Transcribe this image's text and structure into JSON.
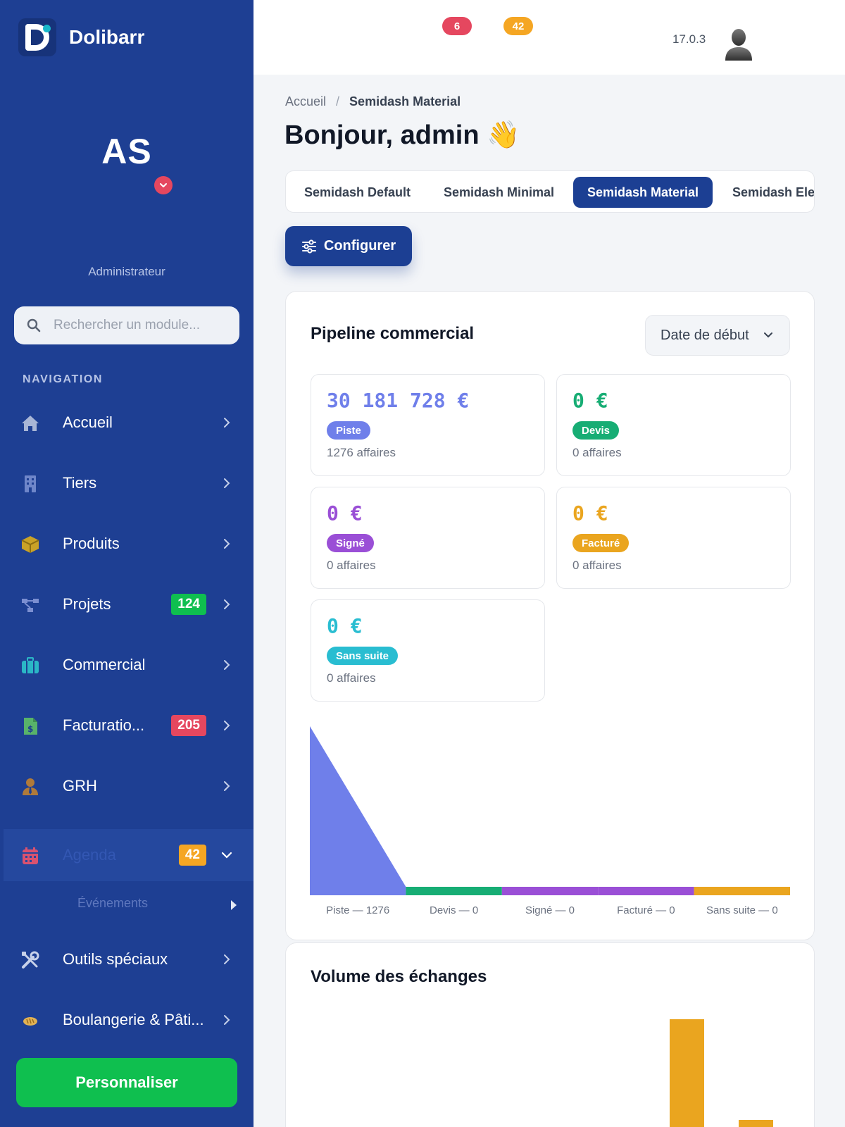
{
  "app": {
    "brand": "Dolibarr",
    "version": "17.0.3"
  },
  "user": {
    "initials": "AS",
    "role": "Administrateur"
  },
  "top_badges": {
    "red": "6",
    "orange": "42"
  },
  "search": {
    "placeholder": "Rechercher un module..."
  },
  "nav": {
    "heading": "NAVIGATION",
    "items": [
      {
        "label": "Accueil",
        "icon": "home-icon"
      },
      {
        "label": "Tiers",
        "icon": "building-icon"
      },
      {
        "label": "Produits",
        "icon": "box-icon"
      },
      {
        "label": "Projets",
        "icon": "project-icon",
        "badge": "124"
      },
      {
        "label": "Commercial",
        "icon": "briefcase-icon"
      },
      {
        "label": "Facturatio...",
        "icon": "invoice-icon",
        "badge": "205"
      },
      {
        "label": "GRH",
        "icon": "user-tie-icon"
      },
      {
        "label": "Agenda",
        "icon": "calendar-icon",
        "badge": "42",
        "active": true,
        "sub": [
          "Événements"
        ]
      },
      {
        "label": "Outils spéciaux",
        "icon": "tools-icon"
      },
      {
        "label": "Boulangerie & Pâti...",
        "icon": "bread-icon"
      }
    ],
    "customize": "Personnaliser"
  },
  "colors": {
    "sidebar": "#1e3f93",
    "primary": "#1c3f93",
    "green": "#0fbf4f",
    "red_badge": "#e5475f",
    "orange_badge": "#f5a623",
    "piste": "#6f7fea",
    "devis": "#17ad74",
    "signe": "#9a4fd6",
    "facture": "#eaa51f",
    "sans_suite": "#29bdd1"
  },
  "breadcrumb": {
    "home": "Accueil",
    "sep": "/",
    "current": "Semidash Material"
  },
  "greeting": "Bonjour, admin 👋",
  "tabs": [
    "Semidash Default",
    "Semidash Minimal",
    "Semidash Material",
    "Semidash Ele"
  ],
  "active_tab": "Semidash Material",
  "configure": "Configurer",
  "pipeline": {
    "title": "Pipeline commercial",
    "filter": "Date de début",
    "stats": [
      {
        "amount": "30 181 728 €",
        "tag": "Piste",
        "count": "1276 affaires"
      },
      {
        "amount": "0 €",
        "tag": "Devis",
        "count": "0 affaires"
      },
      {
        "amount": "0 €",
        "tag": "Signé",
        "count": "0 affaires"
      },
      {
        "amount": "0 €",
        "tag": "Facturé",
        "count": "0 affaires"
      },
      {
        "amount": "0 €",
        "tag": "Sans suite",
        "count": "0 affaires"
      }
    ]
  },
  "chart_data": {
    "type": "area",
    "categories": [
      "Piste",
      "Devis",
      "Signé",
      "Facturé",
      "Sans suite"
    ],
    "values": [
      1276,
      0,
      0,
      0,
      0
    ],
    "tick_labels": [
      "Piste — 1276",
      "Devis — 0",
      "Signé — 0",
      "Facturé — 0",
      "Sans suite — 0"
    ],
    "colors": [
      "#6f7fea",
      "#17ad74",
      "#9a4fd6",
      "#9a4fd6",
      "#eaa51f"
    ],
    "grid": false
  },
  "volume": {
    "title": "Volume des échanges"
  }
}
